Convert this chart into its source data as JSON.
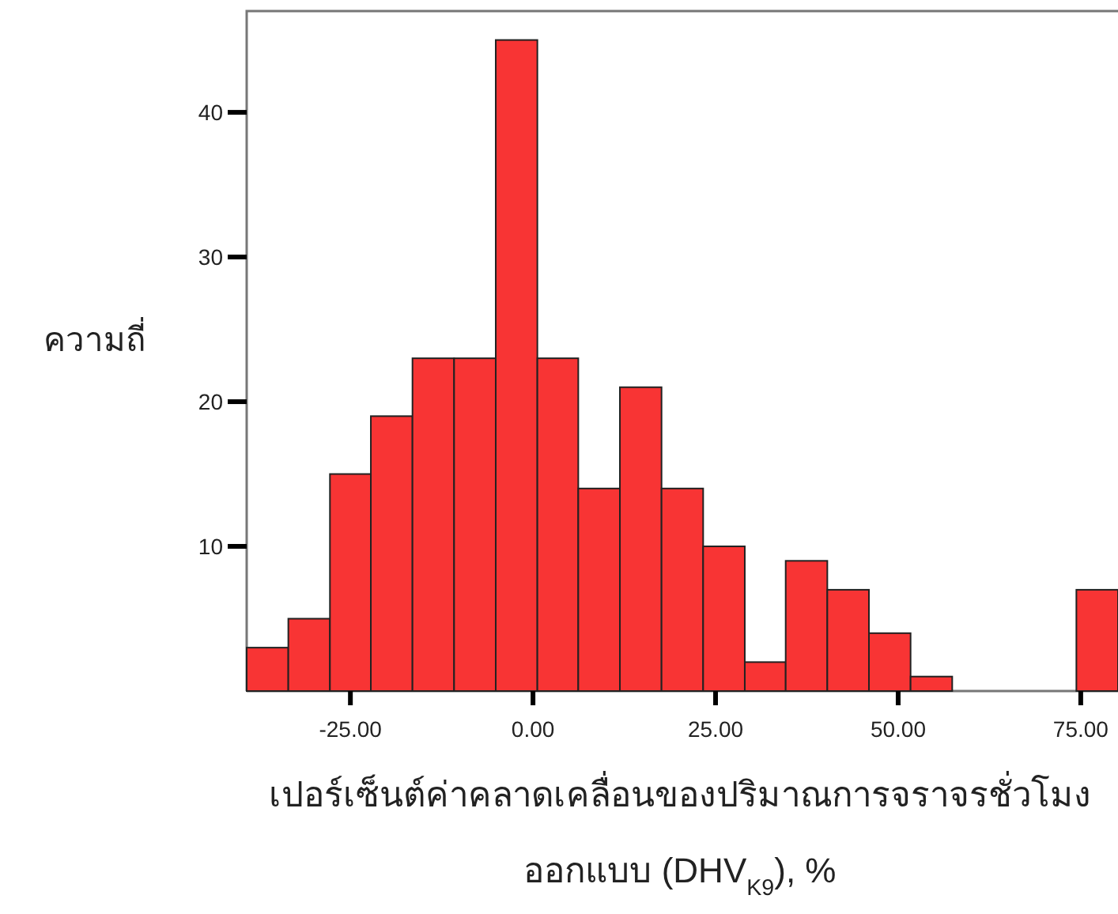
{
  "chart_data": {
    "type": "histogram",
    "bins": [
      -39.2,
      -33.5,
      -27.8,
      -22.2,
      -16.5,
      -10.8,
      -5.1,
      0.6,
      6.2,
      11.9,
      17.6,
      23.3,
      29.0,
      34.6,
      40.3,
      46.0,
      51.7,
      57.4,
      74.4,
      80.1
    ],
    "values": [
      3,
      5,
      15,
      19,
      23,
      23,
      45,
      23,
      14,
      21,
      14,
      10,
      2,
      9,
      7,
      4,
      1,
      0,
      7
    ],
    "color": "#f83434",
    "xlim": [
      -39.2,
      80.1
    ],
    "ylim": [
      0,
      47
    ],
    "xticks": [
      {
        "value": -25,
        "label": "-25.00"
      },
      {
        "value": 0,
        "label": "0.00"
      },
      {
        "value": 25,
        "label": "25.00"
      },
      {
        "value": 50,
        "label": "50.00"
      },
      {
        "value": 75,
        "label": "75.00"
      }
    ],
    "yticks": [
      10,
      20,
      30,
      40
    ],
    "ylabel": "ความถี่",
    "xlabel": "เปอร์เซ็นต์ค่าคลาดเคลื่อนของปริมาณการจราจรชั่วโมง\nออกแบบ (DHV$_{K9}$), %"
  }
}
